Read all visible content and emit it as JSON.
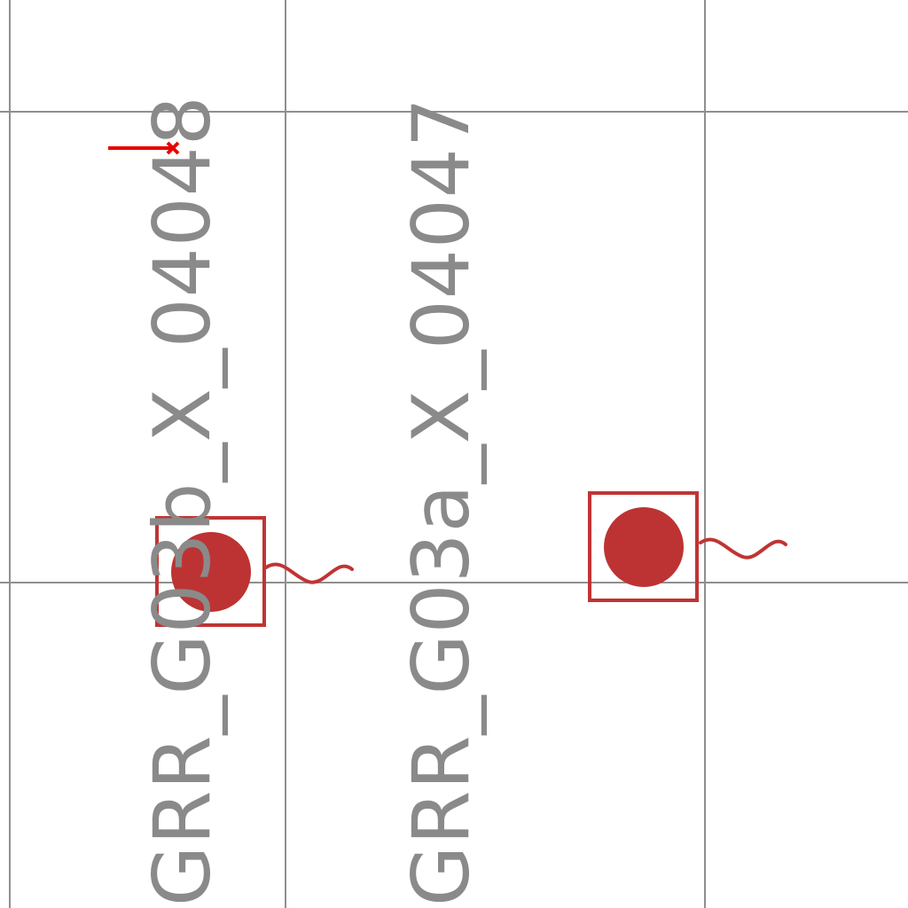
{
  "colors": {
    "background": "#ffffff",
    "grid": "#8f8f8f",
    "label": "#8a8a8a",
    "marker": "#bd3333",
    "marker_stroke": "#c03434",
    "accent_line": "#e60000"
  },
  "icons": {
    "point_marker": "filled-circle-in-square-icon",
    "wave_symbol": "wave-icon",
    "pin_line": "red-pin-line-icon"
  },
  "features": [
    {
      "label": "GRR_G03b_X_04048"
    },
    {
      "label": "GRR_G03a_X_04047"
    }
  ]
}
